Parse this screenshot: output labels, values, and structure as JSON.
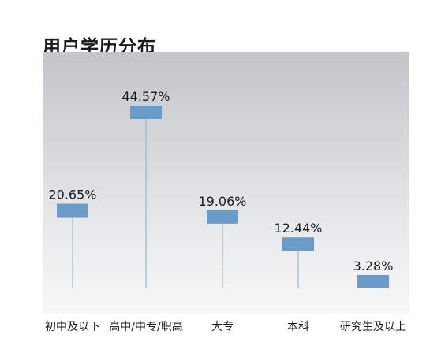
{
  "chart_data": {
    "type": "bar",
    "title": "用户学历分布",
    "xlabel": "",
    "ylabel": "",
    "ylim": [
      0,
      50
    ],
    "grid": false,
    "legend": "none",
    "categories": [
      "初中及以下",
      "高中/中专/职高",
      "大专",
      "本科",
      "研究生及以上"
    ],
    "values": [
      20.65,
      44.57,
      19.06,
      12.44,
      3.28
    ],
    "value_labels": [
      "20.65%",
      "44.57%",
      "19.06%",
      "12.44%",
      "3.28%"
    ],
    "colors": {
      "marker": "#6a9bc9",
      "stem": "#9ab8d3"
    }
  }
}
